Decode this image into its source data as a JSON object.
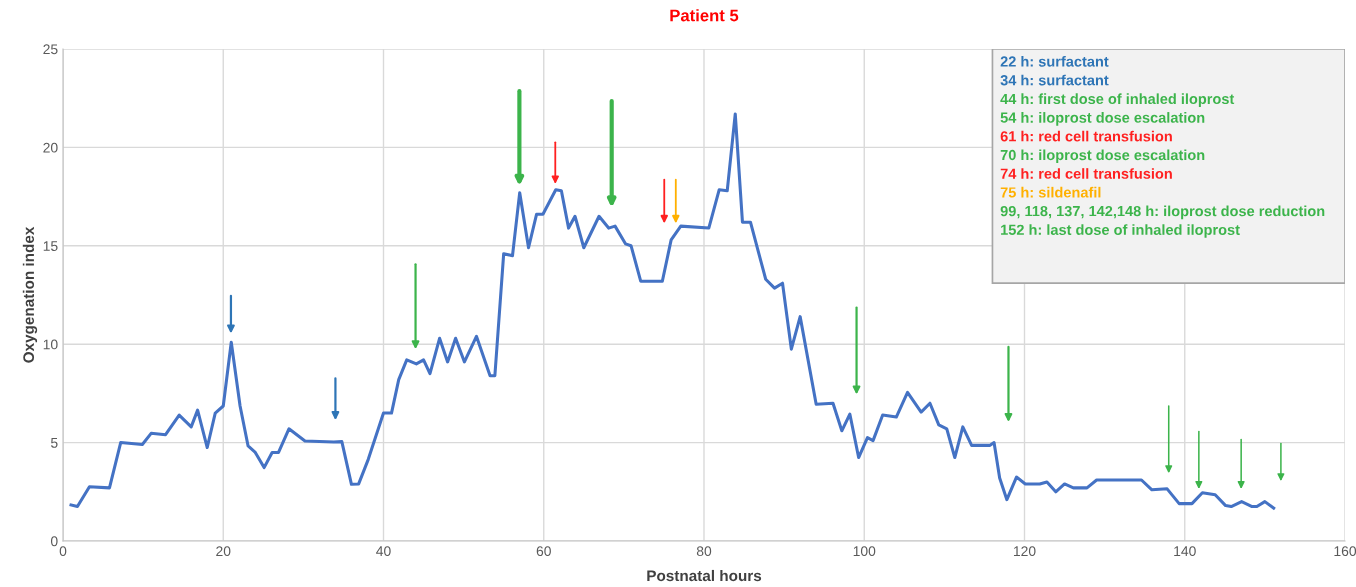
{
  "chart_data": {
    "type": "line",
    "title": "Patient 5",
    "xlabel": "Postnatal hours",
    "ylabel": "Oxygenation index",
    "xlim": [
      0,
      160
    ],
    "xticks": [
      0,
      20,
      40,
      60,
      80,
      100,
      120,
      140,
      160
    ],
    "ylim": [
      0,
      25
    ],
    "yticks": [
      0,
      5,
      10,
      15,
      20,
      25
    ],
    "grid": true,
    "legend": false,
    "marker": "none",
    "line_style": "solid",
    "series": [
      {
        "color": "#4472c4",
        "x": [
          1.0,
          1.8,
          3.3,
          5.8,
          7.2,
          9.9,
          11.0,
          12.8,
          14.5,
          16.0,
          16.8,
          18.0,
          19.0,
          20.0,
          21.0,
          22.1,
          23.1,
          24.0,
          25.1,
          26.1,
          26.9,
          28.2,
          30.2,
          33.8,
          34.8,
          36.0,
          36.9,
          38.1,
          40.0,
          41.0,
          41.9,
          42.9,
          44.1,
          45.0,
          45.8,
          47.0,
          48.0,
          49.0,
          50.1,
          51.6,
          53.3,
          53.9,
          55.0,
          56.1,
          57.0,
          58.1,
          59.1,
          59.9,
          61.5,
          62.2,
          63.1,
          63.9,
          65.0,
          66.9,
          68.1,
          68.9,
          70.2,
          70.9,
          72.1,
          74.0,
          74.8,
          75.9,
          77.1,
          80.6,
          81.9,
          82.9,
          83.9,
          84.8,
          85.8,
          87.7,
          88.8,
          89.8,
          90.9,
          92.0,
          94.0,
          96.1,
          97.2,
          98.2,
          99.3,
          100.4,
          101.1,
          102.3,
          104.0,
          105.4,
          107.1,
          108.2,
          109.3,
          110.3,
          111.3,
          112.3,
          113.4,
          115.7,
          116.2,
          116.9,
          117.8,
          119.0,
          120.1,
          121.9,
          122.8,
          123.9,
          125.0,
          126.1,
          127.8,
          129.0,
          134.6,
          135.9,
          137.8,
          139.3,
          140.9,
          142.2,
          143.8,
          145.1,
          145.8,
          147.1,
          148.4,
          149.0,
          150.0,
          151.1
        ],
        "values": [
          1.83,
          1.75,
          2.76,
          2.7,
          5.0,
          4.9,
          5.47,
          5.4,
          6.4,
          5.8,
          6.65,
          4.75,
          6.5,
          6.86,
          10.1,
          6.86,
          4.83,
          4.5,
          3.73,
          4.5,
          4.5,
          5.7,
          5.08,
          5.03,
          5.05,
          2.88,
          2.9,
          4.15,
          6.5,
          6.5,
          8.2,
          9.2,
          9.0,
          9.2,
          8.5,
          10.3,
          9.1,
          10.3,
          9.1,
          10.4,
          8.4,
          8.4,
          14.6,
          14.5,
          17.7,
          14.9,
          16.6,
          16.6,
          17.85,
          17.8,
          15.9,
          16.5,
          14.9,
          16.5,
          15.9,
          16.0,
          15.1,
          15.0,
          13.2,
          13.2,
          13.2,
          15.3,
          16.0,
          15.9,
          17.85,
          17.8,
          21.7,
          16.2,
          16.2,
          13.3,
          12.85,
          13.1,
          9.75,
          11.4,
          6.95,
          7.0,
          5.6,
          6.45,
          4.24,
          5.25,
          5.1,
          6.4,
          6.3,
          7.55,
          6.55,
          7.0,
          5.9,
          5.7,
          4.24,
          5.8,
          4.86,
          4.86,
          5.0,
          3.2,
          2.1,
          3.25,
          2.9,
          2.9,
          3.0,
          2.5,
          2.9,
          2.7,
          2.7,
          3.1,
          3.1,
          2.6,
          2.65,
          1.9,
          1.9,
          2.45,
          2.35,
          1.8,
          1.75,
          2.0,
          1.75,
          1.75,
          2.0,
          1.67
        ]
      }
    ],
    "annotations": [
      "22 h: surfactant",
      "34 h: surfactant",
      "44 h: first dose of inhaled iloprost",
      "54 h: iloprost dose escalation",
      "61 h: red cell transfusion",
      "70 h: iloprost dose escalation",
      "74 h: red cell transfusion",
      "75 h: sildenafil",
      "99, 118, 137, 142,148 h: iloprost dose reduction",
      "152 h: last dose of inhaled iloprost"
    ]
  }
}
